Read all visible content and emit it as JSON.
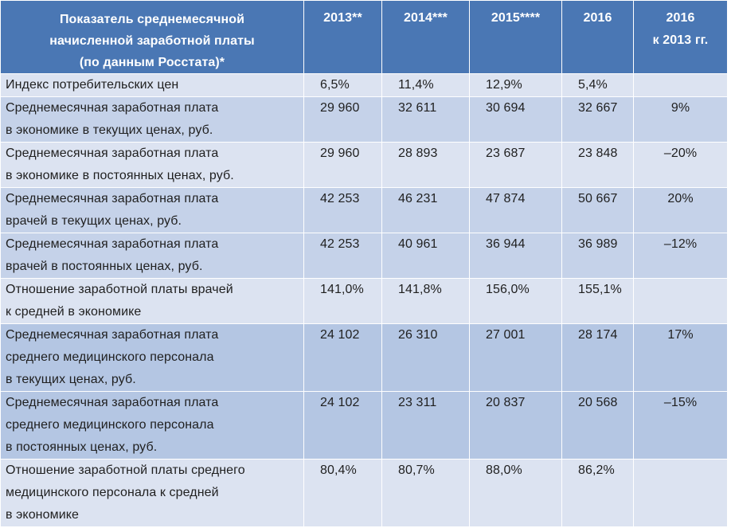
{
  "header": {
    "label_lines": [
      "Показатель среднемесячной",
      "начисленной заработной платы",
      "(по данным Росстата)*"
    ],
    "years": [
      "2013**",
      "2014***",
      "2015****",
      "2016"
    ],
    "change_lines": [
      "2016",
      "к 2013 гг."
    ]
  },
  "rows": [
    {
      "label_lines": [
        "Индекс потребительских цен"
      ],
      "values": [
        "6,5%",
        "11,4%",
        "12,9%",
        "5,4%"
      ],
      "change": ""
    },
    {
      "label_lines": [
        "Среднемесячная заработная плата",
        "в экономике в текущих ценах, руб."
      ],
      "values": [
        "29 960",
        "32 611",
        "30 694",
        "32 667"
      ],
      "change": "9%"
    },
    {
      "label_lines": [
        "Среднемесячная заработная плата",
        "в экономике в постоянных ценах, руб."
      ],
      "values": [
        "29 960",
        "28 893",
        "23 687",
        "23 848"
      ],
      "change": "–20%"
    },
    {
      "label_lines": [
        "Среднемесячная заработная плата",
        "врачей в текущих ценах, руб."
      ],
      "values": [
        "42 253",
        "46 231",
        "47 874",
        "50 667"
      ],
      "change": "20%"
    },
    {
      "label_lines": [
        "Среднемесячная заработная плата",
        "врачей в постоянных ценах, руб."
      ],
      "values": [
        "42 253",
        "40 961",
        "36 944",
        "36 989"
      ],
      "change": "–12%"
    },
    {
      "label_lines": [
        "Отношение заработной платы врачей",
        "к средней в экономике"
      ],
      "values": [
        "141,0%",
        "141,8%",
        "156,0%",
        "155,1%"
      ],
      "change": ""
    },
    {
      "label_lines": [
        "Среднемесячная заработная плата",
        "среднего медицинского персонала",
        "в текущих ценах, руб."
      ],
      "values": [
        "24 102",
        "26 310",
        "27 001",
        "28 174"
      ],
      "change": "17%"
    },
    {
      "label_lines": [
        "Среднемесячная заработная плата",
        "среднего медицинского персонала",
        "в постоянных ценах, руб."
      ],
      "values": [
        "24 102",
        "23 311",
        "20 837",
        "20 568"
      ],
      "change": "–15%"
    },
    {
      "label_lines": [
        "Отношение заработной платы среднего",
        "медицинского персонала к средней",
        "в экономике"
      ],
      "values": [
        "80,4%",
        "80,7%",
        "88,0%",
        "86,2%"
      ],
      "change": ""
    }
  ]
}
